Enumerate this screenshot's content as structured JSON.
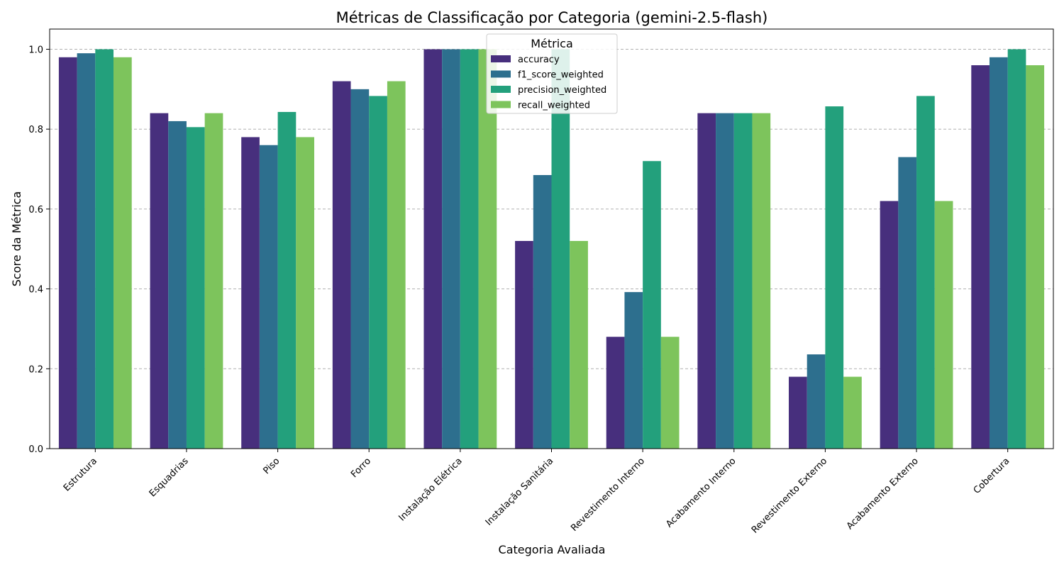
{
  "chart_data": {
    "type": "bar",
    "title": "Métricas de Classificação por Categoria (gemini-2.5-flash)",
    "xlabel": "Categoria Avaliada",
    "ylabel": "Score da Métrica",
    "ylim": [
      0,
      1.05
    ],
    "yticks": [
      "0.0",
      "0.2",
      "0.4",
      "0.6",
      "0.8",
      "1.0"
    ],
    "grid": "y-dashed",
    "legend": {
      "title": "Métrica",
      "placement": "top-center"
    },
    "categories": [
      "Estrutura",
      "Esquadrias",
      "Piso",
      "Forro",
      "Instalação Elétrica",
      "Instalação Sanitária",
      "Revestimento Interno",
      "Acabamento Interno",
      "Revestimento Externo",
      "Acabamento Externo",
      "Cobertura"
    ],
    "series": [
      {
        "name": "accuracy",
        "color": "#472f7d",
        "values": [
          0.98,
          0.84,
          0.78,
          0.92,
          1.0,
          0.52,
          0.28,
          0.84,
          0.18,
          0.62,
          0.96
        ]
      },
      {
        "name": "f1_score_weighted",
        "color": "#2d6f8e",
        "values": [
          0.99,
          0.82,
          0.76,
          0.9,
          1.0,
          0.685,
          0.392,
          0.84,
          0.236,
          0.73,
          0.98
        ]
      },
      {
        "name": "precision_weighted",
        "color": "#23a07c",
        "values": [
          1.0,
          0.805,
          0.843,
          0.883,
          1.0,
          1.0,
          0.72,
          0.84,
          0.857,
          0.883,
          1.0
        ]
      },
      {
        "name": "recall_weighted",
        "color": "#7dc45c",
        "values": [
          0.98,
          0.84,
          0.78,
          0.92,
          1.0,
          0.52,
          0.28,
          0.84,
          0.18,
          0.62,
          0.96
        ]
      }
    ]
  }
}
